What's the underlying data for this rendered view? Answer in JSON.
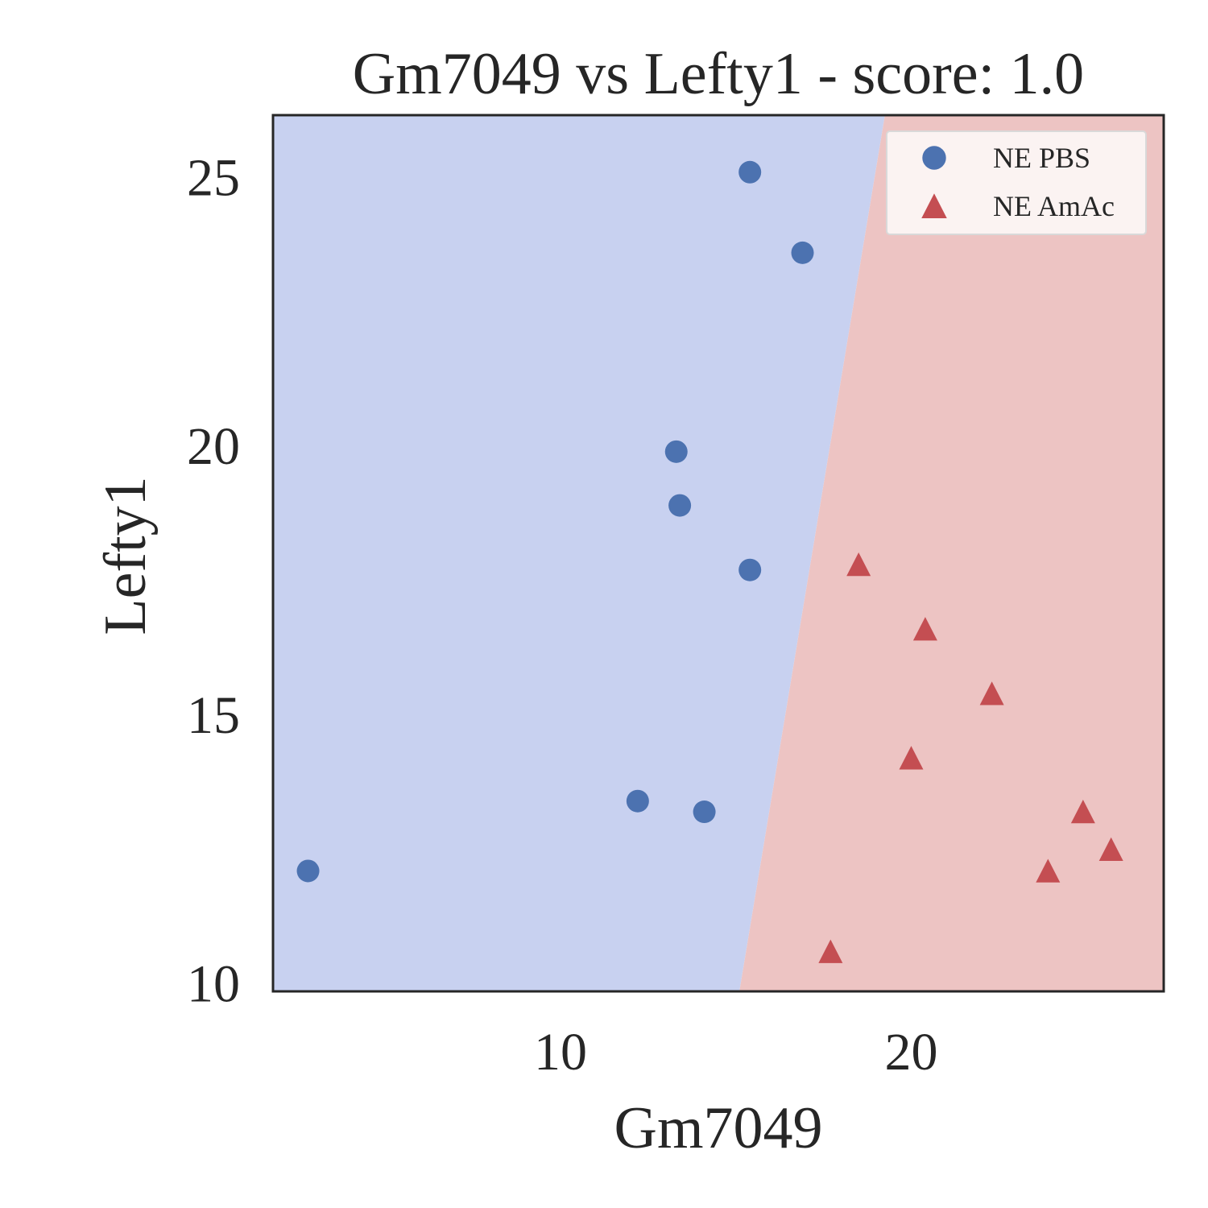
{
  "chart_data": {
    "type": "scatter",
    "title": "Gm7049 vs Lefty1 - score: 1.0",
    "xlabel": "Gm7049",
    "ylabel": "Lefty1",
    "xlim": [
      1.8,
      27.2
    ],
    "ylim": [
      9.86,
      26.16
    ],
    "xticks": [
      10,
      20
    ],
    "yticks": [
      10,
      15,
      20,
      25
    ],
    "grid": false,
    "legend_position": "top-right",
    "background_regions": {
      "boundary": [
        [
          15.1,
          9.86
        ],
        [
          19.25,
          26.16
        ]
      ],
      "left_color": "#c8d1f0",
      "right_color": "#edc4c3",
      "left_class": "NE PBS",
      "right_class": "NE AmAc"
    },
    "series": [
      {
        "name": "NE PBS",
        "marker": "circle",
        "color": "#4c72b0",
        "points": [
          [
            2.8,
            12.1
          ],
          [
            12.2,
            13.4
          ],
          [
            13.3,
            19.9
          ],
          [
            13.4,
            18.9
          ],
          [
            14.1,
            13.2
          ],
          [
            15.4,
            25.1
          ],
          [
            15.4,
            17.7
          ],
          [
            16.9,
            23.6
          ]
        ]
      },
      {
        "name": "NE AmAc",
        "marker": "triangle",
        "color": "#c44e52",
        "points": [
          [
            18.5,
            17.8
          ],
          [
            20.4,
            16.6
          ],
          [
            22.3,
            15.4
          ],
          [
            20.0,
            14.2
          ],
          [
            24.9,
            13.2
          ],
          [
            25.7,
            12.5
          ],
          [
            23.9,
            12.1
          ],
          [
            17.7,
            10.6
          ]
        ]
      }
    ]
  }
}
